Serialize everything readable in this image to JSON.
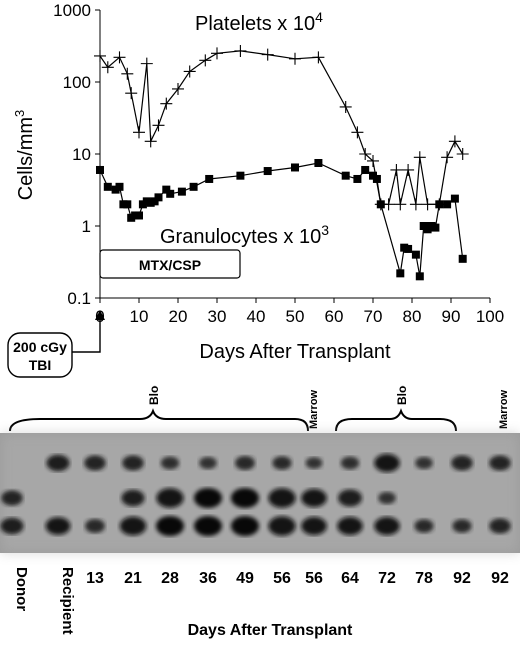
{
  "chart_data": {
    "type": "line",
    "yscale": "log",
    "ylim": [
      0.1,
      1000
    ],
    "xlim": [
      0,
      100
    ],
    "x_ticks": [
      0,
      10,
      20,
      30,
      40,
      50,
      60,
      70,
      80,
      90,
      100
    ],
    "y_ticks": [
      "0.1",
      "1",
      "10",
      "100",
      "1000"
    ],
    "y_tick_values": [
      0.1,
      1,
      10,
      100,
      1000
    ],
    "xlabel": "Days After Transplant",
    "ylabel": "Cells/mm",
    "ylabel_sup": "3",
    "series": [
      {
        "name": "Platelets x 10",
        "name_sup": "4",
        "marker": "plus",
        "points": [
          [
            0,
            230
          ],
          [
            2,
            160
          ],
          [
            5,
            220
          ],
          [
            7,
            130
          ],
          [
            8,
            70
          ],
          [
            10,
            20
          ],
          [
            12,
            180
          ],
          [
            13,
            15
          ],
          [
            15,
            25
          ],
          [
            17,
            50
          ],
          [
            20,
            80
          ],
          [
            23,
            140
          ],
          [
            27,
            200
          ],
          [
            30,
            250
          ],
          [
            36,
            270
          ],
          [
            43,
            240
          ],
          [
            50,
            210
          ],
          [
            56,
            220
          ],
          [
            63,
            45
          ],
          [
            66,
            20
          ],
          [
            68,
            10
          ],
          [
            70,
            8
          ],
          [
            72,
            2
          ],
          [
            74,
            2
          ],
          [
            76,
            6
          ],
          [
            77,
            2
          ],
          [
            79,
            6
          ],
          [
            81,
            2
          ],
          [
            82,
            9
          ],
          [
            84,
            2
          ],
          [
            87,
            2
          ],
          [
            89,
            9
          ],
          [
            91,
            15
          ],
          [
            93,
            10
          ]
        ]
      },
      {
        "name": "Granulocytes x 10",
        "name_sup": "3",
        "marker": "square",
        "points": [
          [
            0,
            6
          ],
          [
            2,
            3.5
          ],
          [
            4,
            3.2
          ],
          [
            5,
            3.5
          ],
          [
            6,
            2
          ],
          [
            7,
            2
          ],
          [
            8,
            1.3
          ],
          [
            9,
            1.4
          ],
          [
            10,
            1.4
          ],
          [
            11,
            2
          ],
          [
            12,
            2.2
          ],
          [
            13,
            2.1
          ],
          [
            14,
            2.2
          ],
          [
            15,
            2.5
          ],
          [
            17,
            3.2
          ],
          [
            18,
            2.8
          ],
          [
            21,
            3
          ],
          [
            24,
            3.5
          ],
          [
            28,
            4.5
          ],
          [
            36,
            5
          ],
          [
            43,
            5.8
          ],
          [
            50,
            6.5
          ],
          [
            56,
            7.5
          ],
          [
            63,
            5
          ],
          [
            66,
            4.5
          ],
          [
            68,
            6
          ],
          [
            70,
            5
          ],
          [
            71,
            4.5
          ],
          [
            72,
            2
          ],
          [
            77,
            0.22
          ],
          [
            78,
            0.5
          ],
          [
            79,
            0.48
          ],
          [
            81,
            0.4
          ],
          [
            82,
            0.2
          ],
          [
            83,
            1
          ],
          [
            84,
            0.9
          ],
          [
            85,
            1
          ],
          [
            86,
            0.95
          ],
          [
            87,
            2
          ],
          [
            89,
            2
          ],
          [
            91,
            2.4
          ],
          [
            93,
            0.35
          ]
        ]
      }
    ],
    "annotations": {
      "treatment_box": "MTX/CSP",
      "conditioning_line1": "200 cGy",
      "conditioning_line2": "TBI"
    }
  },
  "gel": {
    "top_labels": [
      "Blood",
      "Marrow",
      "Blood",
      "Marrow"
    ],
    "lane_labels": [
      "Donor",
      "Recipient",
      "13",
      "21",
      "28",
      "36",
      "49",
      "56",
      "56",
      "64",
      "72",
      "78",
      "92",
      "92"
    ],
    "bottom_title": "Days After Transplant",
    "lanes": [
      {
        "top": 0,
        "mid": 0.6,
        "bot": 0.7
      },
      {
        "top": 0.7,
        "mid": 0,
        "bot": 0.8
      },
      {
        "top": 0.6,
        "mid": 0,
        "bot": 0.5
      },
      {
        "top": 0.6,
        "mid": 0.7,
        "bot": 0.9
      },
      {
        "top": 0.4,
        "mid": 0.95,
        "bot": 1
      },
      {
        "top": 0.35,
        "mid": 1,
        "bot": 1
      },
      {
        "top": 0.5,
        "mid": 1,
        "bot": 1
      },
      {
        "top": 0.45,
        "mid": 0.95,
        "bot": 0.95
      },
      {
        "top": 0.3,
        "mid": 0.85,
        "bot": 0.85
      },
      {
        "top": 0.4,
        "mid": 0.75,
        "bot": 0.85
      },
      {
        "top": 0.85,
        "mid": 0.35,
        "bot": 0.85
      },
      {
        "top": 0.35,
        "mid": 0,
        "bot": 0.45
      },
      {
        "top": 0.6,
        "mid": 0,
        "bot": 0.45
      },
      {
        "top": 0.6,
        "mid": 0,
        "bot": 0.6
      }
    ]
  }
}
